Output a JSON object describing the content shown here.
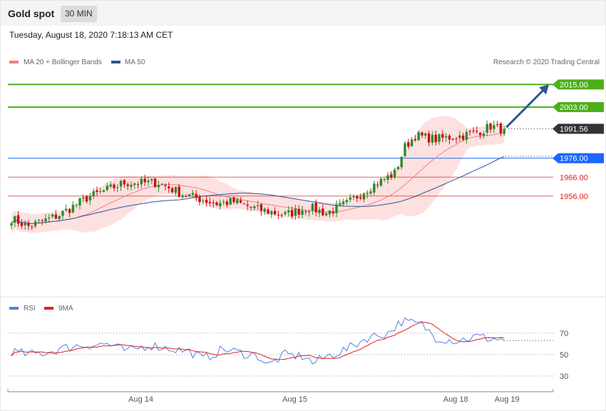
{
  "header": {
    "title": "Gold spot",
    "timeframe": "30 MIN",
    "datetime": "Tuesday, August 18, 2020 7:18:13 AM CET"
  },
  "colors": {
    "ma20": "#f08080",
    "ma50": "#2f5597",
    "bull": "#2e8b2e",
    "bear": "#cc1111",
    "band": "#fde0e0",
    "target": "#4caf1a",
    "support": "#e02020",
    "pivot": "#1a66ff",
    "last": "#333333",
    "arrow": "#2f5597",
    "rsi": "#5a7fe0",
    "rsi_ma": "#e02020"
  },
  "legend": {
    "ma20_label": "MA 20 + Bollinger Bands",
    "ma50_label": "MA 50",
    "rsi_label": "RSI",
    "rsi_ma_label": "9MA"
  },
  "credit": "Research © 2020 Trading Central",
  "levels": [
    {
      "value": 2015.0,
      "label": "2015.00",
      "kind": "target"
    },
    {
      "value": 2003.0,
      "label": "2003.00",
      "kind": "target"
    },
    {
      "value": 1991.56,
      "label": "1991.56",
      "kind": "last"
    },
    {
      "value": 1976.0,
      "label": "1976.00",
      "kind": "pivot"
    },
    {
      "value": 1966.0,
      "label": "1966.00",
      "kind": "support"
    },
    {
      "value": 1956.0,
      "label": "1956.00",
      "kind": "support"
    }
  ],
  "chart_data": [
    {
      "type": "candlestick",
      "title": "Gold spot",
      "ylim": [
        1905,
        2037
      ],
      "x_ticks": [
        "Aug 14",
        "Aug 15",
        "Aug 18",
        "Aug 19"
      ],
      "series": [
        {
          "name": "MA 20 + Bollinger Bands"
        },
        {
          "name": "MA 50"
        }
      ],
      "waypoints": [
        [
          0,
          1944
        ],
        [
          5,
          1940
        ],
        [
          14,
          1946
        ],
        [
          22,
          1955
        ],
        [
          33,
          1963
        ],
        [
          43,
          1963
        ],
        [
          50,
          1957
        ],
        [
          60,
          1952
        ],
        [
          65,
          1953
        ],
        [
          72,
          1949
        ],
        [
          80,
          1946
        ],
        [
          87,
          1950
        ],
        [
          92,
          1947
        ],
        [
          98,
          1952
        ],
        [
          105,
          1961
        ],
        [
          112,
          1968
        ],
        [
          115,
          1982
        ],
        [
          118,
          1988
        ],
        [
          124,
          1986
        ],
        [
          132,
          1988
        ],
        [
          138,
          1991
        ],
        [
          140,
          1993
        ],
        [
          144,
          1991
        ]
      ],
      "ma50_end": 1977,
      "last": 1991.56,
      "forecast_arrow": {
        "from": 1991.56,
        "to": 2015.0
      }
    },
    {
      "type": "line",
      "title": "RSI",
      "series": [
        {
          "name": "RSI"
        },
        {
          "name": "9MA"
        }
      ],
      "y_ticks": [
        70,
        50,
        30
      ],
      "rsi_waypoints": [
        [
          0,
          53
        ],
        [
          5,
          50
        ],
        [
          10,
          52
        ],
        [
          18,
          58
        ],
        [
          28,
          60
        ],
        [
          34,
          53
        ],
        [
          40,
          59
        ],
        [
          46,
          56
        ],
        [
          52,
          53
        ],
        [
          56,
          46
        ],
        [
          62,
          55
        ],
        [
          68,
          51
        ],
        [
          72,
          49
        ],
        [
          75,
          40
        ],
        [
          80,
          50
        ],
        [
          86,
          48
        ],
        [
          88,
          42
        ],
        [
          92,
          48
        ],
        [
          98,
          55
        ],
        [
          104,
          66
        ],
        [
          110,
          70
        ],
        [
          114,
          81
        ],
        [
          120,
          78
        ],
        [
          124,
          66
        ],
        [
          130,
          63
        ],
        [
          136,
          67
        ],
        [
          140,
          65
        ],
        [
          144,
          64
        ]
      ]
    }
  ]
}
